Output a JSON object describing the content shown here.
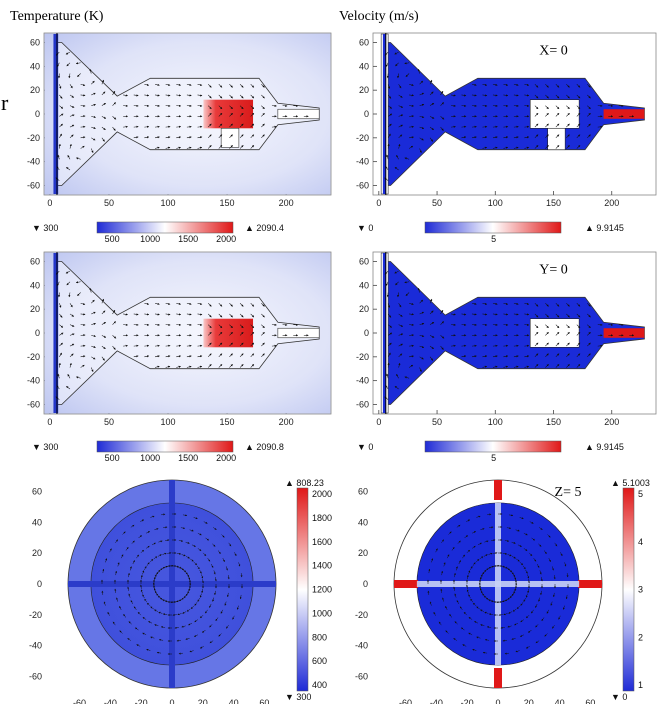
{
  "figure": {
    "stray_char": "r",
    "col_titles": [
      "Temperature (K)",
      "Velocity (m/s)"
    ]
  },
  "colors": {
    "low": "#1f2bd6",
    "mid": "#ffffff",
    "high": "#e01818",
    "cool_bg": "#c9d0f3",
    "warm": "#f0f2fc"
  },
  "chart_data": [
    {
      "type": "heatmap",
      "id": "temp_x0",
      "title": "Temperature (K)",
      "annotation": "",
      "xticks": [
        0,
        50,
        100,
        150,
        200
      ],
      "yticks": [
        60,
        40,
        20,
        0,
        -20,
        -40,
        -60
      ],
      "xlim": [
        -5,
        238
      ],
      "ylim": [
        -68,
        68
      ],
      "colorbar": {
        "min_label": "300",
        "max_label": "2090.4",
        "ticks": [
          "500",
          "1000",
          "1500",
          "2000"
        ],
        "orientation": "horizontal"
      },
      "min": 300,
      "max": 2090.4
    },
    {
      "type": "heatmap",
      "id": "vel_x0",
      "title": "Velocity (m/s)",
      "annotation": "X= 0",
      "xticks": [
        0,
        50,
        100,
        150,
        200
      ],
      "yticks": [
        60,
        40,
        20,
        0,
        -20,
        -40,
        -60
      ],
      "xlim": [
        -5,
        238
      ],
      "ylim": [
        -68,
        68
      ],
      "colorbar": {
        "min_label": "0",
        "max_label": "9.9145",
        "ticks": [
          "5"
        ],
        "orientation": "horizontal"
      },
      "min": 0,
      "max": 9.9145
    },
    {
      "type": "heatmap",
      "id": "temp_y0",
      "title": "",
      "annotation": "",
      "xticks": [
        0,
        50,
        100,
        150,
        200
      ],
      "yticks": [
        60,
        40,
        20,
        0,
        -20,
        -40,
        -60
      ],
      "xlim": [
        -5,
        238
      ],
      "ylim": [
        -68,
        68
      ],
      "colorbar": {
        "min_label": "300",
        "max_label": "2090.8",
        "ticks": [
          "500",
          "1000",
          "1500",
          "2000"
        ],
        "orientation": "horizontal"
      },
      "min": 300,
      "max": 2090.8
    },
    {
      "type": "heatmap",
      "id": "vel_y0",
      "title": "",
      "annotation": "Y= 0",
      "xticks": [
        0,
        50,
        100,
        150,
        200
      ],
      "yticks": [
        60,
        40,
        20,
        0,
        -20,
        -40,
        -60
      ],
      "xlim": [
        -5,
        238
      ],
      "ylim": [
        -68,
        68
      ],
      "colorbar": {
        "min_label": "0",
        "max_label": "9.9145",
        "ticks": [
          "5"
        ],
        "orientation": "horizontal"
      },
      "min": 0,
      "max": 9.9145
    },
    {
      "type": "heatmap",
      "id": "temp_z5",
      "title": "",
      "annotation": "",
      "xticks": [
        -60,
        -40,
        -20,
        0,
        20,
        40,
        60
      ],
      "yticks": [
        60,
        40,
        20,
        0,
        -20,
        -40,
        -60
      ],
      "colorbar": {
        "max_label": "808.23",
        "min_label": "300",
        "ticks": [
          "2000",
          "1800",
          "1600",
          "1400",
          "1200",
          "1000",
          "800",
          "600",
          "400"
        ],
        "orientation": "vertical"
      },
      "min": 300,
      "max": 808.23
    },
    {
      "type": "heatmap",
      "id": "vel_z5",
      "title": "",
      "annotation": "Z= 5",
      "xticks": [
        -60,
        -40,
        -20,
        0,
        20,
        40,
        60
      ],
      "yticks": [
        60,
        40,
        20,
        0,
        -20,
        -40,
        -60
      ],
      "colorbar": {
        "max_label": "5.1003",
        "min_label": "0",
        "ticks": [
          "5",
          "4",
          "3",
          "2",
          "1"
        ],
        "orientation": "vertical"
      },
      "min": 0,
      "max": 5.1003
    }
  ]
}
